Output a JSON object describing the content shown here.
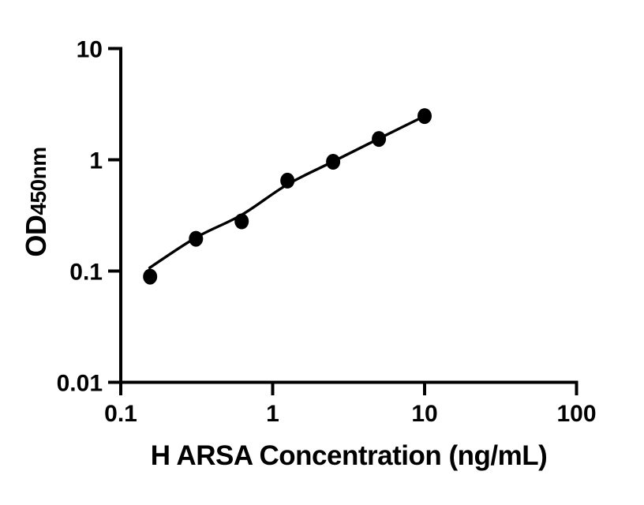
{
  "figure": {
    "background": "#ffffff",
    "foreground": "#000000"
  },
  "chart_data": {
    "type": "scatter",
    "title": "",
    "xlabel": "H ARSA Concentration (ng/mL)",
    "ylabel": "OD450nm",
    "ylabel_main": "OD",
    "ylabel_sub": "450nm",
    "x_scale": "log",
    "y_scale": "log",
    "xlim": [
      0.1,
      100
    ],
    "ylim": [
      0.01,
      10
    ],
    "grid": false,
    "legend": "none",
    "x_ticks": [
      0.1,
      1,
      10,
      100
    ],
    "x_tick_labels": [
      "0.1",
      "1",
      "10",
      "100"
    ],
    "y_ticks": [
      10,
      1,
      0.1,
      0.01
    ],
    "y_tick_labels": [
      "10",
      "1",
      "0.1",
      "0.01"
    ],
    "series": [
      {
        "name": "H ARSA standard curve",
        "marker": "filled-circle",
        "color": "#000000",
        "x": [
          0.156,
          0.3125,
          0.625,
          1.25,
          2.5,
          5,
          10
        ],
        "y": [
          0.089,
          0.195,
          0.28,
          0.65,
          0.96,
          1.54,
          2.47
        ]
      }
    ],
    "fit_curve": {
      "name": "fitted standard curve line",
      "color": "#000000",
      "x": [
        0.155,
        0.3125,
        0.625,
        1.25,
        2.5,
        5,
        10
      ],
      "y": [
        0.107,
        0.2,
        0.32,
        0.6,
        0.965,
        1.55,
        2.47
      ]
    }
  }
}
